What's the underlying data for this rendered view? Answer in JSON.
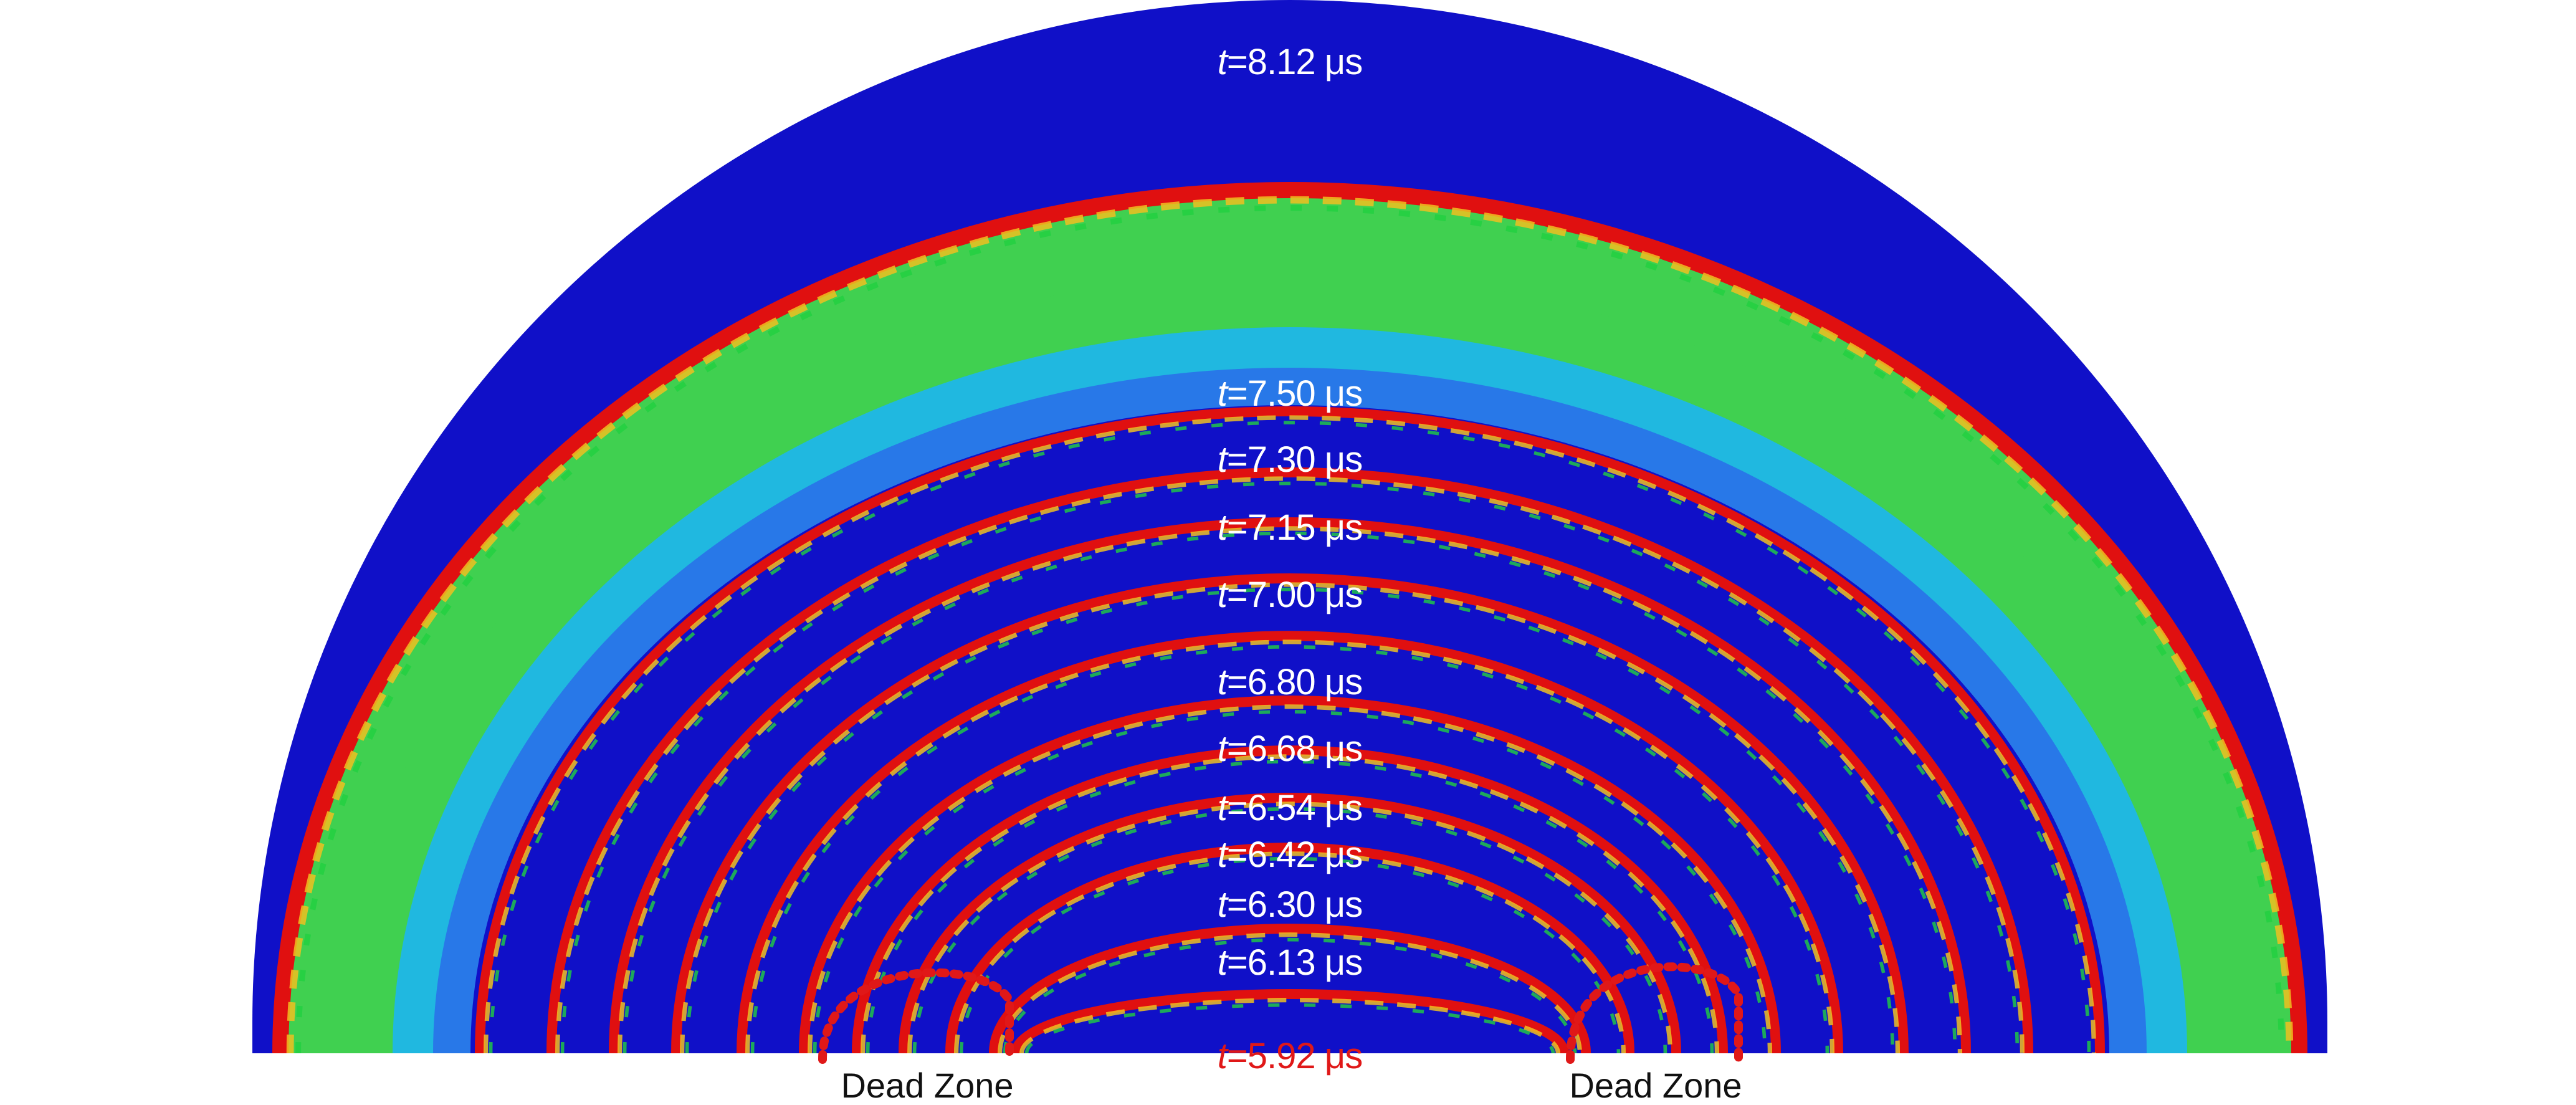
{
  "colors": {
    "background": "#1010c8",
    "front_outer": "#e01010",
    "front_mid": "#f0c020",
    "front_inner": "#20d040",
    "band_green": "#40d050",
    "band_cyan": "#20b8e0",
    "band_blue": "#2878e8",
    "label_white": "#ffffff",
    "label_red": "#e01818",
    "dead_zone_outline": "#e01818"
  },
  "time_unit": "μs",
  "time_var": "t",
  "wavefronts": [
    {
      "t": "8.12",
      "label_color": "white"
    },
    {
      "t": "7.50",
      "label_color": "white"
    },
    {
      "t": "7.30",
      "label_color": "white"
    },
    {
      "t": "7.15",
      "label_color": "white"
    },
    {
      "t": "7.00",
      "label_color": "white"
    },
    {
      "t": "6.80",
      "label_color": "white"
    },
    {
      "t": "6.68",
      "label_color": "white"
    },
    {
      "t": "6.54",
      "label_color": "white"
    },
    {
      "t": "6.42",
      "label_color": "white"
    },
    {
      "t": "6.30",
      "label_color": "white"
    },
    {
      "t": "6.13",
      "label_color": "white"
    },
    {
      "t": "5.92",
      "label_color": "red"
    }
  ],
  "dead_zones": [
    {
      "label": "Dead Zone"
    },
    {
      "label": "Dead Zone"
    }
  ]
}
